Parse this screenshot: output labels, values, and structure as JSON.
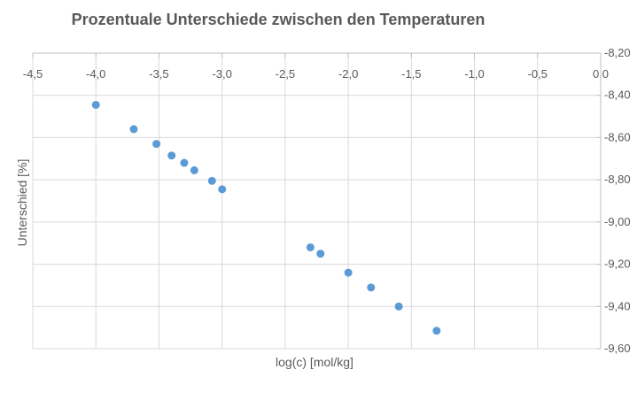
{
  "chart_data": {
    "type": "scatter",
    "title": "Prozentuale Unterschiede zwischen den Temperaturen",
    "xlabel": "log(c) [mol/kg]",
    "ylabel": "Unterschied [%]",
    "xlim": [
      -4.5,
      0.0
    ],
    "ylim": [
      -9.6,
      -8.2
    ],
    "x_ticks": [
      "-4,5",
      "-4,0",
      "-3,5",
      "-3,0",
      "-2,5",
      "-2,0",
      "-1,5",
      "-1,0",
      "-0,5",
      "0,0"
    ],
    "y_ticks": [
      "-8,20",
      "-8,40",
      "-8,60",
      "-8,80",
      "-9,00",
      "-9,20",
      "-9,40",
      "-9,60"
    ],
    "grid": true,
    "legend": "none",
    "color": "#5b9bd5",
    "series": [
      {
        "points": [
          {
            "x": -4.0,
            "y": -8.445
          },
          {
            "x": -3.7,
            "y": -8.56
          },
          {
            "x": -3.52,
            "y": -8.63
          },
          {
            "x": -3.4,
            "y": -8.685
          },
          {
            "x": -3.3,
            "y": -8.72
          },
          {
            "x": -3.22,
            "y": -8.755
          },
          {
            "x": -3.08,
            "y": -8.805
          },
          {
            "x": -3.0,
            "y": -8.845
          },
          {
            "x": -2.3,
            "y": -9.12
          },
          {
            "x": -2.22,
            "y": -9.15
          },
          {
            "x": -2.0,
            "y": -9.24
          },
          {
            "x": -1.82,
            "y": -9.31
          },
          {
            "x": -1.6,
            "y": -9.4
          },
          {
            "x": -1.3,
            "y": -9.515
          }
        ]
      }
    ]
  }
}
